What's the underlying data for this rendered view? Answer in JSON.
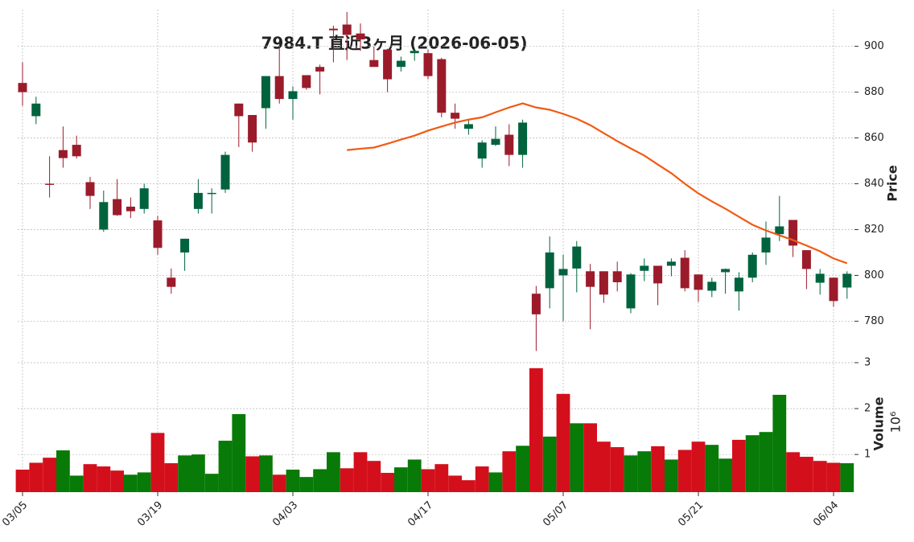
{
  "chart_data": {
    "type": "candlestick",
    "title": "7984.T 直近3ヶ月 (2026-06-05)",
    "categories": [
      "03/05",
      null,
      null,
      null,
      null,
      null,
      null,
      null,
      null,
      null,
      "03/19",
      null,
      null,
      null,
      null,
      null,
      null,
      null,
      null,
      null,
      "04/03",
      null,
      null,
      null,
      null,
      null,
      null,
      null,
      null,
      null,
      "04/17",
      null,
      null,
      null,
      null,
      null,
      null,
      null,
      null,
      null,
      "05/07",
      null,
      null,
      null,
      null,
      null,
      null,
      null,
      null,
      null,
      "05/21",
      null,
      null,
      null,
      null,
      null,
      null,
      null,
      null,
      null,
      "06/04",
      null
    ],
    "open": [
      884,
      869.5,
      840,
      854.7,
      857,
      840.7,
      820,
      833.3,
      830,
      829,
      824,
      799,
      810,
      829,
      835.5,
      837.5,
      875,
      870,
      873,
      887,
      877,
      887.4,
      891,
      907.7,
      909.5,
      905.6,
      894,
      898.6,
      891,
      897,
      897,
      894.4,
      871,
      864,
      851,
      857,
      861.4,
      852.6,
      792,
      794.4,
      800,
      803,
      801.8,
      801.8,
      801.8,
      785.6,
      802,
      804.2,
      804.2,
      807.7,
      800.4,
      793.3,
      801.4,
      793,
      799,
      810,
      818,
      824.2,
      811,
      796.8,
      799,
      794.7
    ],
    "high": [
      893,
      878,
      852,
      865,
      861,
      843,
      837,
      842,
      834,
      840,
      826,
      803,
      816,
      842,
      838,
      854,
      875,
      870,
      887,
      900,
      882.5,
      887.4,
      892,
      909,
      915,
      910,
      900,
      899,
      895.5,
      899,
      898.6,
      895,
      875,
      867.7,
      859,
      865,
      866,
      868,
      795.4,
      817,
      809,
      815,
      805,
      801.8,
      806,
      801,
      807.4,
      804.2,
      807.4,
      811,
      800.4,
      799,
      803,
      801.4,
      810,
      823.5,
      834.7,
      824.2,
      811,
      802.8,
      799,
      801.8
    ],
    "low": [
      874,
      866,
      834,
      847,
      851,
      829,
      819,
      826,
      825,
      827,
      809,
      792,
      802,
      827,
      827,
      836,
      856,
      854,
      864,
      875,
      868,
      881,
      879,
      893,
      894,
      898,
      891,
      880,
      889,
      893.7,
      885.6,
      869,
      864,
      861.4,
      847,
      856.5,
      847.7,
      847,
      767,
      785.6,
      780,
      792.6,
      776.5,
      788,
      793,
      783.5,
      797.5,
      787,
      799.6,
      793,
      788.4,
      790.5,
      792,
      784.6,
      797,
      804.6,
      815,
      808,
      794,
      791.6,
      786.3,
      789.8
    ],
    "close": [
      880,
      875,
      839.5,
      851.2,
      852,
      834.7,
      832,
      826.3,
      828,
      838,
      812,
      795,
      816,
      836,
      836,
      852.6,
      869.5,
      858,
      887,
      877,
      880.4,
      881.8,
      889,
      907,
      905,
      903,
      891,
      885.6,
      893.7,
      898,
      887,
      871,
      868.4,
      866,
      858,
      859.6,
      852.6,
      866.7,
      783,
      810,
      802.8,
      812.6,
      795,
      791.6,
      797,
      800.4,
      804.2,
      796.5,
      806,
      794.4,
      793.7,
      797.2,
      802.8,
      799,
      809,
      816.5,
      821.4,
      813,
      802.8,
      800.7,
      788.8,
      800.7
    ],
    "up_color": "#00633e",
    "down_color": "#9b1b2b",
    "ma": {
      "color": "#f05a14",
      "values": [
        null,
        null,
        null,
        null,
        null,
        null,
        null,
        null,
        null,
        null,
        null,
        null,
        null,
        null,
        null,
        null,
        null,
        null,
        null,
        null,
        null,
        null,
        null,
        null,
        854.7,
        855.3,
        855.8,
        857.5,
        859.3,
        861,
        863.2,
        865,
        866.7,
        868,
        869,
        871.2,
        873.3,
        875.1,
        873.3,
        872.3,
        870.5,
        868.4,
        865.6,
        862.1,
        858.6,
        855.4,
        852.3,
        848.4,
        844.6,
        840,
        835.8,
        832.3,
        829.1,
        825.6,
        822.1,
        819.6,
        817.5,
        815.4,
        813,
        810.5,
        807.4,
        805.3
      ]
    },
    "ylim": [
      764,
      916
    ],
    "yticks": [
      780,
      800,
      820,
      840,
      860,
      880,
      900
    ],
    "y_label": "Price",
    "grid": true,
    "volume": {
      "label": "Volume",
      "exponent": "10⁶",
      "ylim": [
        0.18,
        3.0
      ],
      "yticks": [
        1,
        2,
        3
      ],
      "values": [
        0.67,
        0.82,
        0.93,
        1.09,
        0.54,
        0.79,
        0.74,
        0.65,
        0.56,
        0.61,
        1.47,
        0.81,
        0.98,
        1.0,
        0.58,
        1.3,
        1.88,
        0.96,
        0.98,
        0.56,
        0.67,
        0.51,
        0.68,
        1.05,
        0.7,
        1.05,
        0.86,
        0.6,
        0.72,
        0.89,
        0.68,
        0.79,
        0.54,
        0.44,
        0.74,
        0.61,
        1.07,
        1.19,
        2.88,
        1.39,
        2.32,
        1.68,
        1.68,
        1.28,
        1.16,
        0.98,
        1.07,
        1.18,
        0.89,
        1.1,
        1.28,
        1.21,
        0.91,
        1.32,
        1.42,
        1.49,
        2.3,
        1.05,
        0.95,
        0.86,
        0.82,
        0.81
      ],
      "colors": [
        "#d40f1c",
        "#d40f1c",
        "#d40f1c",
        "#077a07",
        "#077a07",
        "#d40f1c",
        "#d40f1c",
        "#d40f1c",
        "#077a07",
        "#077a07",
        "#d40f1c",
        "#d40f1c",
        "#077a07",
        "#077a07",
        "#077a07",
        "#077a07",
        "#077a07",
        "#d40f1c",
        "#077a07",
        "#d40f1c",
        "#077a07",
        "#077a07",
        "#077a07",
        "#077a07",
        "#d40f1c",
        "#d40f1c",
        "#d40f1c",
        "#d40f1c",
        "#077a07",
        "#077a07",
        "#d40f1c",
        "#d40f1c",
        "#d40f1c",
        "#d40f1c",
        "#d40f1c",
        "#077a07",
        "#d40f1c",
        "#077a07",
        "#d40f1c",
        "#077a07",
        "#d40f1c",
        "#077a07",
        "#d40f1c",
        "#d40f1c",
        "#d40f1c",
        "#077a07",
        "#077a07",
        "#d40f1c",
        "#077a07",
        "#d40f1c",
        "#d40f1c",
        "#077a07",
        "#077a07",
        "#d40f1c",
        "#077a07",
        "#077a07",
        "#077a07",
        "#d40f1c",
        "#d40f1c",
        "#d40f1c",
        "#d40f1c",
        "#077a07"
      ]
    }
  }
}
